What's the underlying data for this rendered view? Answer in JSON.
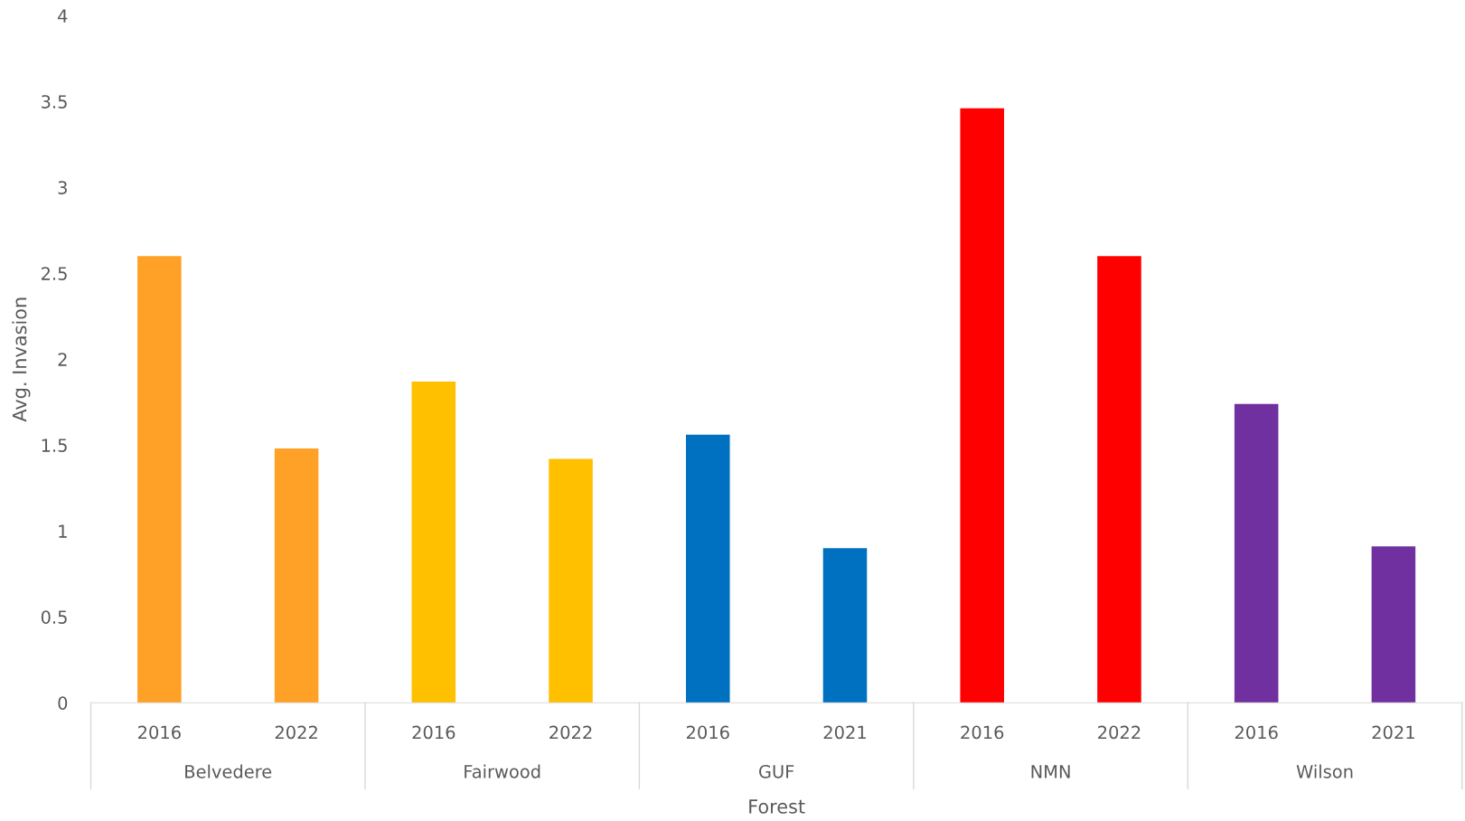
{
  "chart_data": {
    "type": "bar",
    "categories": [
      "2016",
      "2022",
      "2016",
      "2022",
      "2016",
      "2021",
      "2016",
      "2022",
      "2016",
      "2021"
    ],
    "values": [
      2.6,
      1.48,
      1.87,
      1.42,
      1.56,
      0.9,
      3.46,
      2.6,
      1.74,
      0.91
    ],
    "colors": [
      "#ffa126",
      "#ffa126",
      "#ffc000",
      "#ffc000",
      "#0070c0",
      "#0070c0",
      "#ff0000",
      "#ff0000",
      "#7030a0",
      "#7030a0"
    ],
    "annotations": [
      "Belvedere",
      "Fairwood",
      "GUF",
      "NMN",
      "Wilson"
    ],
    "xlabel": "Forest",
    "ylabel": "Avg. Invasion",
    "ylim": [
      0,
      4
    ],
    "yticks": [
      0,
      0.5,
      1,
      1.5,
      2,
      2.5,
      3,
      3.5,
      4
    ],
    "grid": false,
    "legend": false
  }
}
